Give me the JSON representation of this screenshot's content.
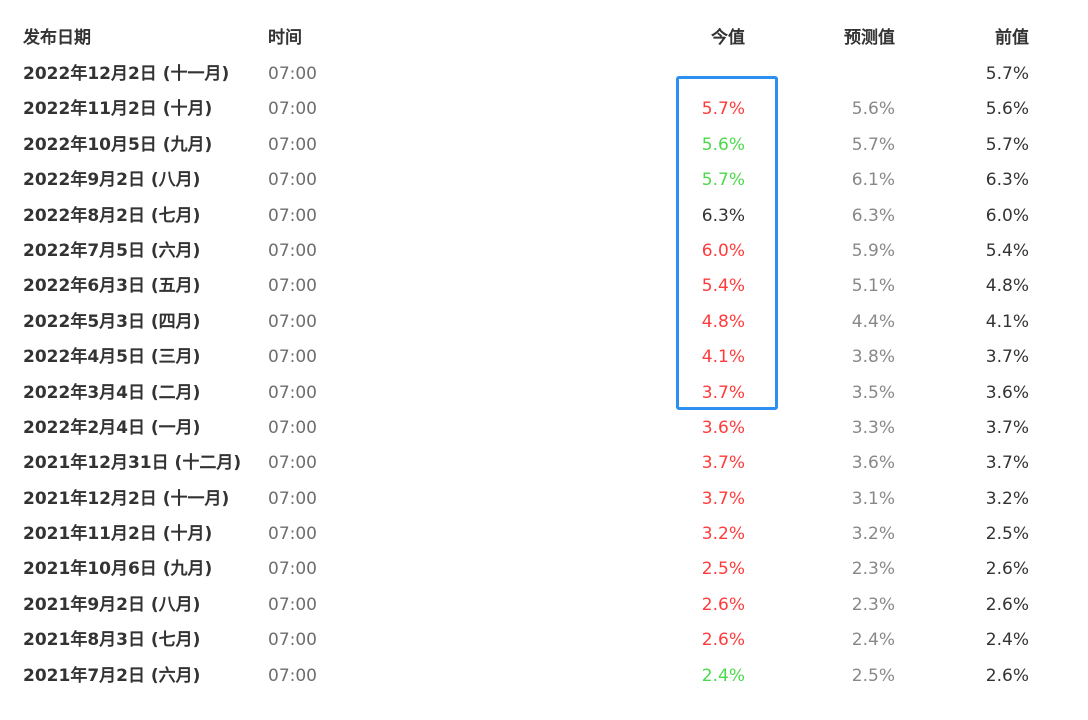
{
  "header": {
    "date": "发布日期",
    "time": "时间",
    "actual": "今值",
    "forecast": "预测值",
    "previous": "前值"
  },
  "colors": {
    "up": "#ff3b3b",
    "down": "#4cd94c",
    "same": "#333333",
    "highlight": "#2d8ff0"
  },
  "rows": [
    {
      "date": "2022年12月2日 (十一月)",
      "time": "07:00",
      "actual": "",
      "trend": "same",
      "forecast": "",
      "previous": "5.7%"
    },
    {
      "date": "2022年11月2日 (十月)",
      "time": "07:00",
      "actual": "5.7%",
      "trend": "up",
      "forecast": "5.6%",
      "previous": "5.6%"
    },
    {
      "date": "2022年10月5日 (九月)",
      "time": "07:00",
      "actual": "5.6%",
      "trend": "down",
      "forecast": "5.7%",
      "previous": "5.7%"
    },
    {
      "date": "2022年9月2日 (八月)",
      "time": "07:00",
      "actual": "5.7%",
      "trend": "down",
      "forecast": "6.1%",
      "previous": "6.3%"
    },
    {
      "date": "2022年8月2日 (七月)",
      "time": "07:00",
      "actual": "6.3%",
      "trend": "same",
      "forecast": "6.3%",
      "previous": "6.0%"
    },
    {
      "date": "2022年7月5日 (六月)",
      "time": "07:00",
      "actual": "6.0%",
      "trend": "up",
      "forecast": "5.9%",
      "previous": "5.4%"
    },
    {
      "date": "2022年6月3日 (五月)",
      "time": "07:00",
      "actual": "5.4%",
      "trend": "up",
      "forecast": "5.1%",
      "previous": "4.8%"
    },
    {
      "date": "2022年5月3日 (四月)",
      "time": "07:00",
      "actual": "4.8%",
      "trend": "up",
      "forecast": "4.4%",
      "previous": "4.1%"
    },
    {
      "date": "2022年4月5日 (三月)",
      "time": "07:00",
      "actual": "4.1%",
      "trend": "up",
      "forecast": "3.8%",
      "previous": "3.7%"
    },
    {
      "date": "2022年3月4日 (二月)",
      "time": "07:00",
      "actual": "3.7%",
      "trend": "up",
      "forecast": "3.5%",
      "previous": "3.6%"
    },
    {
      "date": "2022年2月4日 (一月)",
      "time": "07:00",
      "actual": "3.6%",
      "trend": "up",
      "forecast": "3.3%",
      "previous": "3.7%"
    },
    {
      "date": "2021年12月31日 (十二月)",
      "time": "07:00",
      "actual": "3.7%",
      "trend": "up",
      "forecast": "3.6%",
      "previous": "3.7%"
    },
    {
      "date": "2021年12月2日 (十一月)",
      "time": "07:00",
      "actual": "3.7%",
      "trend": "up",
      "forecast": "3.1%",
      "previous": "3.2%"
    },
    {
      "date": "2021年11月2日 (十月)",
      "time": "07:00",
      "actual": "3.2%",
      "trend": "up",
      "forecast": "3.2%",
      "previous": "2.5%"
    },
    {
      "date": "2021年10月6日 (九月)",
      "time": "07:00",
      "actual": "2.5%",
      "trend": "up",
      "forecast": "2.3%",
      "previous": "2.6%"
    },
    {
      "date": "2021年9月2日 (八月)",
      "time": "07:00",
      "actual": "2.6%",
      "trend": "up",
      "forecast": "2.3%",
      "previous": "2.6%"
    },
    {
      "date": "2021年8月3日 (七月)",
      "time": "07:00",
      "actual": "2.6%",
      "trend": "up",
      "forecast": "2.4%",
      "previous": "2.4%"
    },
    {
      "date": "2021年7月2日 (六月)",
      "time": "07:00",
      "actual": "2.4%",
      "trend": "down",
      "forecast": "2.5%",
      "previous": "2.6%"
    }
  ]
}
